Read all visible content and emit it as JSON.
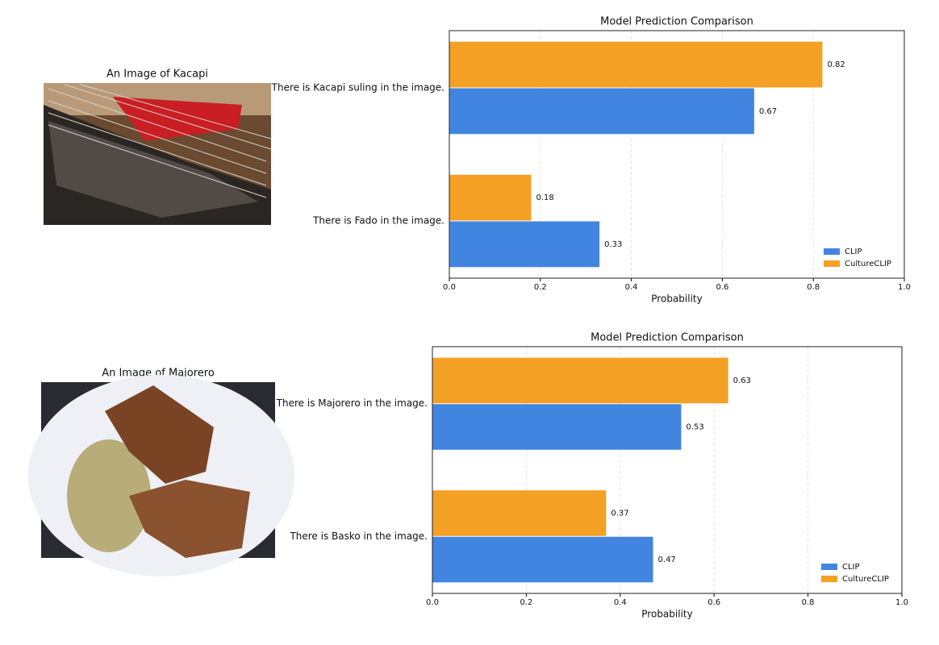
{
  "images": [
    {
      "title": "An Image of Kacapi"
    },
    {
      "title": "An Image of Majorero"
    }
  ],
  "chart_data": [
    {
      "type": "barh",
      "title": "Model Prediction Comparison",
      "xlabel": "Probability",
      "categories": [
        "There is Kacapi suling in the image.",
        "There is Fado in the image."
      ],
      "series": [
        {
          "name": "CLIP",
          "color": "#4285e0",
          "values": [
            0.67,
            0.33
          ]
        },
        {
          "name": "CultureCLIP",
          "color": "#f4a024",
          "values": [
            0.82,
            0.18
          ]
        }
      ],
      "xlim": [
        0,
        1
      ],
      "xticks": [
        {
          "value": 0,
          "label": "0.0"
        },
        0.2,
        0.4,
        0.6,
        0.8,
        {
          "value": 1,
          "label": "1.0"
        }
      ],
      "grid": true,
      "legend": "lower right"
    },
    {
      "type": "barh",
      "title": "Model Prediction Comparison",
      "xlabel": "Probability",
      "categories": [
        "There is Majorero in the image.",
        "There is Basko in the image."
      ],
      "series": [
        {
          "name": "CLIP",
          "color": "#4285e0",
          "values": [
            0.53,
            0.47
          ]
        },
        {
          "name": "CultureCLIP",
          "color": "#f4a024",
          "values": [
            0.63,
            0.37
          ]
        }
      ],
      "xlim": [
        0,
        1
      ],
      "xticks": [
        {
          "value": 0,
          "label": "0.0"
        },
        0.2,
        0.4,
        0.6,
        0.8,
        {
          "value": 1,
          "label": "1.0"
        }
      ],
      "grid": true,
      "legend": "lower right"
    }
  ]
}
